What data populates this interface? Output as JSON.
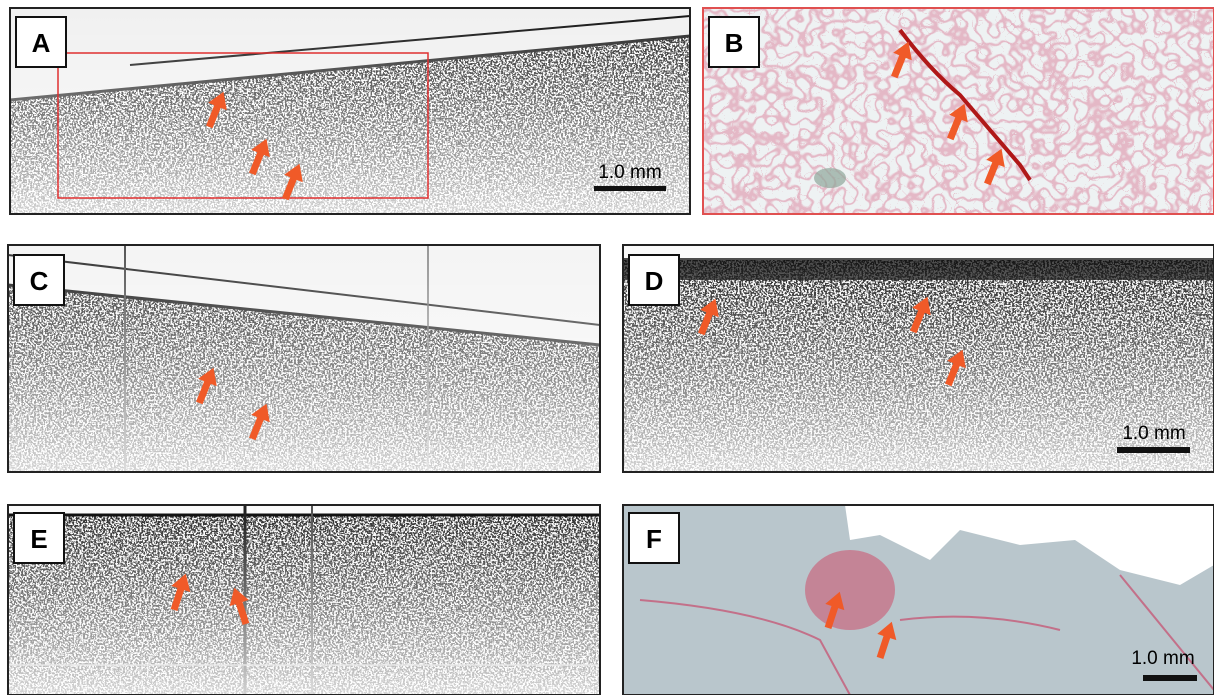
{
  "panels": [
    {
      "label": "A",
      "scale_bar": "1.0 mm"
    },
    {
      "label": "B"
    },
    {
      "label": "C"
    },
    {
      "label": "D",
      "scale_bar": "1.0 mm"
    },
    {
      "label": "E"
    },
    {
      "label": "F",
      "scale_bar": "1.0 mm"
    }
  ]
}
